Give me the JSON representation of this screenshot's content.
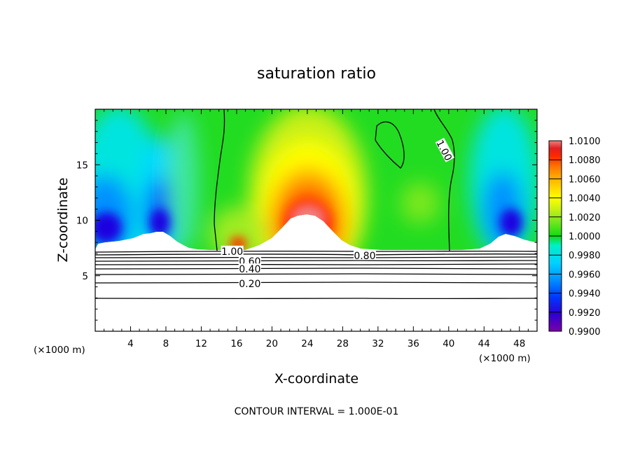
{
  "chart_data": {
    "type": "heatmap",
    "title": "saturation ratio",
    "xlabel": "X-coordinate",
    "ylabel": "Z-coordinate",
    "x_unit_label": "(×1000 m)",
    "x_unit_label_right": "(×1000 m)",
    "xlim": [
      0,
      50
    ],
    "ylim": [
      0,
      20
    ],
    "x_ticks": [
      4,
      8,
      12,
      16,
      20,
      24,
      28,
      32,
      36,
      40,
      44,
      48
    ],
    "y_ticks": [
      5,
      10,
      15
    ],
    "colorbar": {
      "min": 0.99,
      "max": 1.01,
      "tick_labels": [
        "1.0100",
        "1.0080",
        "1.0060",
        "1.0040",
        "1.0020",
        "1.0000",
        "0.9980",
        "0.9960",
        "0.9940",
        "0.9920",
        "0.9900"
      ],
      "colors": [
        "#7a00a8",
        "#2d00d2",
        "#0038ff",
        "#0090ff",
        "#00d2ff",
        "#00f0c8",
        "#10dc10",
        "#7ae81e",
        "#c8f014",
        "#ffff00",
        "#ffd200",
        "#ffa000",
        "#ff6e00",
        "#ff2800",
        "#e02020",
        "#f08080"
      ]
    },
    "contour_lines": [
      {
        "label": "1.00",
        "x": 15.5,
        "z": 7.2
      },
      {
        "label": "0.80",
        "x": 30.5,
        "z": 6.8
      },
      {
        "label": "0.60",
        "x": 17.5,
        "z": 6.3
      },
      {
        "label": "0.40",
        "x": 17.5,
        "z": 5.6
      },
      {
        "label": "0.20",
        "x": 17.5,
        "z": 4.3
      },
      {
        "label": "1.00",
        "x": 39.5,
        "z": 16.3
      }
    ],
    "footer": "CONTOUR INTERVAL = 1.000E-01"
  }
}
